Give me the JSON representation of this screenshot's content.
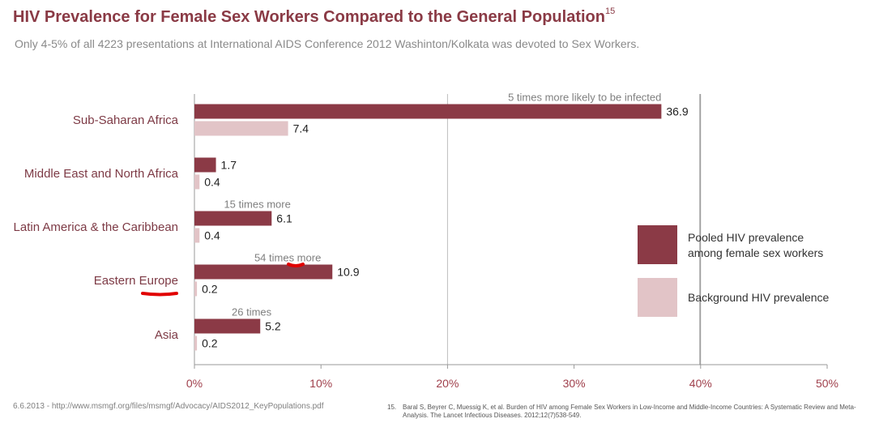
{
  "header": {
    "title": "HIV Prevalence for Female Sex Workers Compared to the General Population",
    "title_ref": "15",
    "subtitle": "Only 4-5% of all 4223 presentations at International AIDS Conference 2012 Washinton/Kolkata was devoted to Sex Workers."
  },
  "chart_data": {
    "type": "bar",
    "orientation": "horizontal",
    "categories": [
      "Sub-Saharan Africa",
      "Middle East and North Africa",
      "Latin America & the Caribbean",
      "Eastern Europe",
      "Asia"
    ],
    "series": [
      {
        "name": "Pooled HIV prevalence among female sex workers",
        "legend_lines": [
          "Pooled HIV prevalence",
          "among female sex workers"
        ],
        "color": "#8b3a46",
        "values": [
          36.9,
          1.7,
          6.1,
          10.9,
          5.2
        ],
        "labels": [
          "36.9",
          "1.7",
          "6.1",
          "10.9",
          "5.2"
        ]
      },
      {
        "name": "Background HIV prevalence",
        "legend_lines": [
          "Background HIV prevalence"
        ],
        "color": "#e2c4c7",
        "values": [
          7.4,
          0.4,
          0.4,
          0.2,
          0.2
        ],
        "labels": [
          "7.4",
          "0.4",
          "0.4",
          "0.2",
          "0.2"
        ]
      }
    ],
    "annotations": [
      {
        "category": "Sub-Saharan Africa",
        "text": "5 times more likely to be infected"
      },
      {
        "category": "Latin America & the Caribbean",
        "text": "15 times more"
      },
      {
        "category": "Eastern Europe",
        "text": "54 times more"
      },
      {
        "category": "Asia",
        "text": "26 times"
      }
    ],
    "xlim": [
      0,
      50
    ],
    "xticks": [
      0,
      10,
      20,
      30,
      40,
      50
    ],
    "xtick_labels": [
      "0%",
      "10%",
      "20%",
      "30%",
      "40%",
      "50%"
    ],
    "gridlines_at": [
      20,
      40
    ],
    "legend_position": "right"
  },
  "footer": {
    "source": "6.6.2013 - http://www.msmgf.org/files/msmgf/Advocacy/AIDS2012_KeyPopulations.pdf",
    "ref_number": "15.",
    "reference": "Baral S, Beyrer C, Muessig K, et al. Burden of HIV among Female Sex Workers in Low-Income and Middle-Income Countries: A Systematic Review and Meta-Analysis. The Lancet Infectious Diseases. 2012;12(7)538-549."
  }
}
